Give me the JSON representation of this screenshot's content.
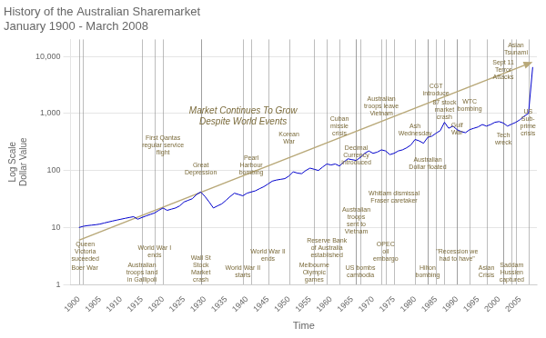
{
  "chart_data": {
    "type": "line",
    "title": "History of the Australian Sharemarket\nJanuary 1900 - March 2008",
    "x_label": "Time",
    "y_label": "Log Scale\nDollar Value",
    "color": "#0000cc",
    "log": "y",
    "grid": "y",
    "x": [
      1900,
      1901,
      1902,
      1903,
      1904,
      1905,
      1906,
      1907,
      1908,
      1909,
      1910,
      1911,
      1912,
      1913,
      1914,
      1915,
      1916,
      1917,
      1918,
      1919,
      1920,
      1921,
      1922,
      1923,
      1924,
      1925,
      1926,
      1927,
      1928,
      1929,
      1930,
      1931,
      1932,
      1933,
      1934,
      1935,
      1936,
      1937,
      1938,
      1939,
      1940,
      1941,
      1942,
      1943,
      1944,
      1945,
      1946,
      1947,
      1948,
      1949,
      1950,
      1951,
      1952,
      1953,
      1954,
      1955,
      1956,
      1957,
      1958,
      1959,
      1960,
      1961,
      1962,
      1963,
      1964,
      1965,
      1966,
      1967,
      1968,
      1969,
      1970,
      1971,
      1972,
      1973,
      1974,
      1975,
      1976,
      1977,
      1978,
      1979,
      1980,
      1981,
      1982,
      1983,
      1984,
      1985,
      1986,
      1987,
      1988,
      1989,
      1990,
      1991,
      1992,
      1993,
      1994,
      1995,
      1996,
      1997,
      1998,
      1999,
      2000,
      2001,
      2002,
      2003,
      2004,
      2005,
      2006,
      2007,
      2008
    ],
    "values": [
      10,
      10.5,
      10.8,
      11,
      11.2,
      11.5,
      12,
      12.5,
      13,
      13.5,
      14,
      14.5,
      15,
      15.5,
      14,
      15,
      16,
      17,
      18,
      20,
      22,
      20,
      21,
      22,
      24,
      28,
      30,
      32,
      38,
      42,
      35,
      28,
      22,
      24,
      26,
      30,
      35,
      40,
      38,
      36,
      40,
      42,
      44,
      48,
      52,
      58,
      65,
      68,
      70,
      72,
      80,
      95,
      90,
      88,
      100,
      110,
      105,
      100,
      115,
      130,
      125,
      130,
      120,
      140,
      160,
      155,
      150,
      170,
      200,
      220,
      200,
      210,
      230,
      220,
      190,
      200,
      220,
      230,
      250,
      280,
      350,
      330,
      300,
      380,
      400,
      450,
      500,
      700,
      550,
      600,
      520,
      480,
      460,
      520,
      550,
      580,
      640,
      600,
      640,
      700,
      720,
      680,
      600,
      650,
      700,
      780,
      900,
      1000,
      6500
    ],
    "xlim": [
      1898,
      2009
    ],
    "xticks": [
      1900,
      1905,
      1910,
      1915,
      1920,
      1925,
      1930,
      1935,
      1940,
      1945,
      1950,
      1955,
      1960,
      1965,
      1970,
      1975,
      1980,
      1985,
      1990,
      1995,
      2000,
      2005
    ],
    "ylim": [
      1,
      20000
    ],
    "yticks": [
      1,
      10,
      100,
      {
        "value": 1000,
        "label": "1,000"
      },
      {
        "value": 10000,
        "label": "10,000"
      }
    ],
    "arrow": {
      "x": [
        1900,
        2008
      ],
      "y": [
        6,
        8000
      ],
      "color": "#b8a878"
    },
    "watermark": {
      "text": "Market Continues To Grow\nDespite World Events",
      "color": "#7a6a3a"
    },
    "annotations": [
      {
        "x": 1900,
        "text": "Boer War",
        "color": "#7a6a3a"
      },
      {
        "x": 1901,
        "text": "Queen\nVictoria\nsuceeded",
        "color": "#7a6a3a"
      },
      {
        "x": 1915,
        "text": "Australian\ntroops land\nin Gallipoli",
        "color": "#7a6a3a"
      },
      {
        "x": 1918,
        "text": "World War I\nends",
        "color": "#7a6a3a"
      },
      {
        "x": 1920,
        "text": "First Qantas\nregular service\nflight",
        "color": "#7a6a3a"
      },
      {
        "x": 1929,
        "text": "Great\nDepression",
        "color": "#7a6a3a"
      },
      {
        "x": 1929,
        "text": "Wall St\nStock\nMarket\ncrash",
        "color": "#7a6a3a"
      },
      {
        "x": 1939,
        "text": "World War II\nstarts",
        "color": "#7a6a3a"
      },
      {
        "x": 1941,
        "text": "Pearl\nHarbour\nbombing",
        "color": "#7a6a3a"
      },
      {
        "x": 1945,
        "text": "World War II\nends",
        "color": "#7a6a3a"
      },
      {
        "x": 1950,
        "text": "Korean\nWar",
        "color": "#7a6a3a"
      },
      {
        "x": 1956,
        "text": "Melbourne\nOlympic\ngames",
        "color": "#7a6a3a"
      },
      {
        "x": 1959,
        "text": "Reserve Bank\nof Australia\nestablished",
        "color": "#7a6a3a"
      },
      {
        "x": 1962,
        "text": "Cuban\nmissle\ncrisis",
        "color": "#7a6a3a"
      },
      {
        "x": 1966,
        "text": "Decimal\nCurrency\nintroduced",
        "color": "#7a6a3a"
      },
      {
        "x": 1966,
        "text": "Australian\ntroops\nsent to\nVietnam",
        "color": "#7a6a3a"
      },
      {
        "x": 1967,
        "text": "US bombs\ncambodia",
        "color": "#7a6a3a"
      },
      {
        "x": 1972,
        "text": "Australian\ntroops leave\nVietnam",
        "color": "#7a6a3a"
      },
      {
        "x": 1973,
        "text": "OPEC\noil\nembargo",
        "color": "#7a6a3a"
      },
      {
        "x": 1975,
        "text": "Whitlam dismissal\nFraser caretaker",
        "color": "#7a6a3a"
      },
      {
        "x": 1980,
        "text": "Ash\nWednesday",
        "color": "#7a6a3a"
      },
      {
        "x": 1983,
        "text": "Hilton\nbombing",
        "color": "#7a6a3a"
      },
      {
        "x": 1983,
        "text": "Australian\nDollar floated",
        "color": "#7a6a3a"
      },
      {
        "x": 1987,
        "text": "87 stock\nmarket\ncrash",
        "color": "#7a6a3a"
      },
      {
        "x": 1985,
        "text": "CGT\nintroduce",
        "color": "#7a6a3a"
      },
      {
        "x": 1990,
        "text": "Gulf\nWar",
        "color": "#7a6a3a"
      },
      {
        "x": 1990,
        "text": "\"Recession we\nhad to have\"",
        "color": "#7a6a3a"
      },
      {
        "x": 1993,
        "text": "WTC\nbombing",
        "color": "#7a6a3a"
      },
      {
        "x": 1997,
        "text": "Asian\nCrisis",
        "color": "#7a6a3a"
      },
      {
        "x": 2001,
        "text": "Sept 11\nTerror\nAttacks",
        "color": "#7a6a3a"
      },
      {
        "x": 2001,
        "text": "Tech\nwreck",
        "color": "#7a6a3a"
      },
      {
        "x": 2003,
        "text": "Saddam\nHussien\ncaptured",
        "color": "#7a6a3a"
      },
      {
        "x": 2004,
        "text": "Asian\nTsunami",
        "color": "#7a6a3a"
      },
      {
        "x": 2007,
        "text": "US\nSub-\nprime\ncrisis",
        "color": "#7a6a3a"
      }
    ]
  }
}
